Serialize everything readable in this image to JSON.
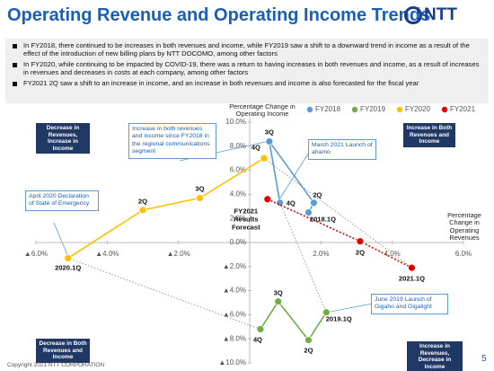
{
  "header": {
    "title": "Operating Revenue and Operating Income Trends",
    "logo": "NTT"
  },
  "bullets": [
    "In FY2018, there continued to be increases in both revenues and income, while FY2019 saw a shift to a downward trend in income as a result of the effect of the introduction of new billing plans by NTT DOCOMO, among other factors",
    "In FY2020, while continuing to be impacted by COVID-19, there was a return to having increases in both revenues and income, as a result of increases in revenues and decreases in costs at each company,  among other factors",
    "FY2021 2Q saw a shift to an increase in income, and an increase in both revenues and income is also forecasted for the fiscal year"
  ],
  "chart_data": {
    "type": "scatter",
    "x_label": "Percentage Change in Operating Revenues",
    "y_label": "Percentage Change in Operating Income",
    "xlim": [
      -6,
      6
    ],
    "ylim": [
      -10,
      10
    ],
    "xticks": [
      {
        "value": -6,
        "label": "▲6.0%"
      },
      {
        "value": -4,
        "label": "▲4.0%"
      },
      {
        "value": -2,
        "label": "▲2.0%"
      },
      {
        "value": 2,
        "label": "2.0%"
      },
      {
        "value": 4,
        "label": "4.0%"
      },
      {
        "value": 6,
        "label": "6.0%"
      }
    ],
    "yticks": [
      {
        "value": 10,
        "label": "10.0%"
      },
      {
        "value": 8,
        "label": "8.0%"
      },
      {
        "value": 6,
        "label": "6.0%"
      },
      {
        "value": 4,
        "label": "4.0%"
      },
      {
        "value": 2,
        "label": "2.0%"
      },
      {
        "value": 0,
        "label": "0.0%"
      },
      {
        "value": -2,
        "label": "▲2.0%"
      },
      {
        "value": -4,
        "label": "▲4.0%"
      },
      {
        "value": -6,
        "label": "▲6.0%"
      },
      {
        "value": -8,
        "label": "▲8.0%"
      },
      {
        "value": -10,
        "label": "▲10.0%"
      }
    ],
    "legend": "top",
    "series": [
      {
        "name": "FY2018",
        "color": "#5b9bd5",
        "x": [
          1.65,
          1.8,
          0.55,
          0.85
        ],
        "values": [
          2.5,
          3.3,
          8.4,
          3.3
        ],
        "point_labels": [
          "2018.1Q",
          "2Q",
          "3Q",
          "4Q"
        ]
      },
      {
        "name": "FY2019",
        "color": "#70ad47",
        "x": [
          2.15,
          1.65,
          0.8,
          0.3
        ],
        "values": [
          -5.8,
          -8.1,
          -4.9,
          -7.2
        ],
        "point_labels": [
          "2019.1Q",
          "2Q",
          "3Q",
          "4Q"
        ]
      },
      {
        "name": "FY2020",
        "color": "#ffc000",
        "x": [
          -5.1,
          -3.0,
          -1.4,
          0.4
        ],
        "values": [
          -1.3,
          2.7,
          3.7,
          7.0
        ],
        "point_labels": [
          "2020.1Q",
          "2Q",
          "3Q",
          "4Q"
        ]
      },
      {
        "name": "FY2021",
        "color": "#e00000",
        "x": [
          4.55,
          3.1,
          0.5
        ],
        "values": [
          -2.1,
          0.1,
          3.6
        ],
        "point_labels": [
          "2021.1Q",
          "2Q",
          "FY2021 Results Forecast"
        ],
        "dashed": true
      }
    ],
    "annotations": [
      "Increase in both revenues and income since FY2018 in the regional communications segment",
      "March 2021 Launch of ahamo",
      "April 2020 Declaration of State of Emergency",
      "June 2019 Launch of Gigaho and Gigalight"
    ],
    "quadrant_labels": [
      "Decrease in Revenues, Increase in Income",
      "Increase in Both Revenues and Income",
      "Decrease in Both Revenues and Income",
      "Increase in Revenues, Decrease in Income"
    ]
  },
  "footer": {
    "copyright": "Copyright 2021  NTT CORPORATION",
    "page": "5"
  }
}
